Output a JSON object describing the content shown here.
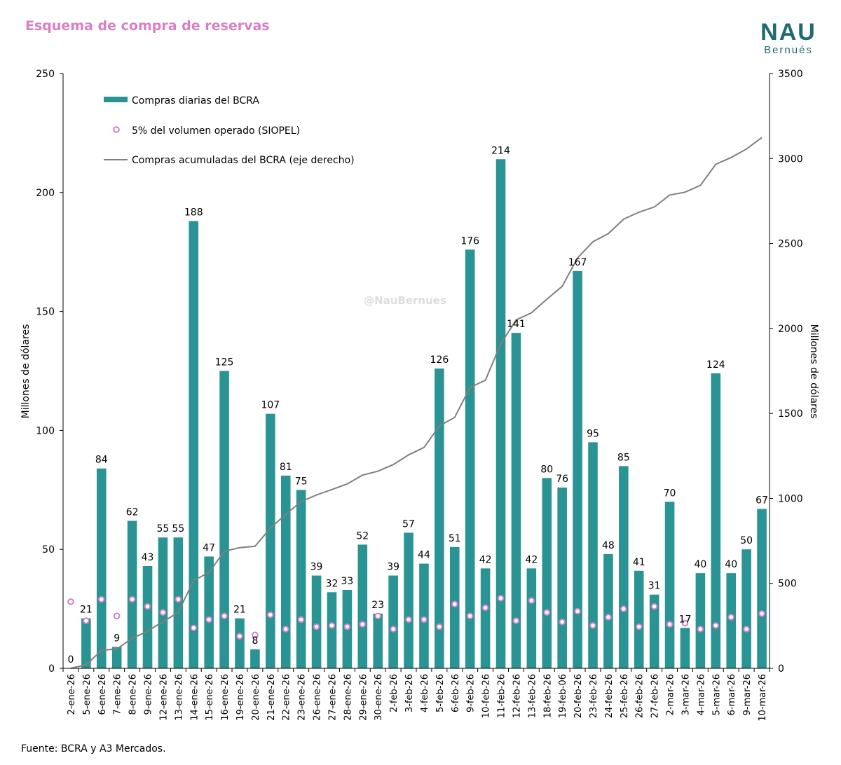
{
  "header": {
    "title": "Esquema de compra de reservas",
    "logo_main": "NAU",
    "logo_sub": "Bernués"
  },
  "watermark": "@NauBernues",
  "source": "Fuente: BCRA y A3 Mercados.",
  "colors": {
    "title": "#d97fc4",
    "bars": "#2a9393",
    "line": "#808080",
    "markers": "#d080c8",
    "logo": "#1f6b6e"
  },
  "chart_data": {
    "type": "bar",
    "categories": [
      "2-ene-26",
      "5-ene-26",
      "6-ene-26",
      "7-ene-26",
      "8-ene-26",
      "9-ene-26",
      "12-ene-26",
      "13-ene-26",
      "14-ene-26",
      "15-ene-26",
      "16-ene-26",
      "19-ene-26",
      "20-ene-26",
      "21-ene-26",
      "22-ene-26",
      "23-ene-26",
      "26-ene-26",
      "27-ene-26",
      "28-ene-26",
      "29-ene-26",
      "30-ene-26",
      "2-feb-26",
      "3-feb-26",
      "4-feb-26",
      "5-feb-26",
      "6-feb-26",
      "9-feb-26",
      "10-feb-26",
      "11-feb-26",
      "12-feb-26",
      "13-feb-26",
      "18-feb-26",
      "19-feb-06",
      "20-feb-26",
      "23-feb-26",
      "24-feb-26",
      "25-feb-26",
      "26-feb-26",
      "27-feb-26",
      "2-mar-26",
      "3-mar-26",
      "4-mar-26",
      "5-mar-26",
      "6-mar-26",
      "9-mar-26",
      "10-mar-26"
    ],
    "series": [
      {
        "name": "Compras diarias del BCRA",
        "type": "bar",
        "axis": "left",
        "values": [
          0,
          21,
          84,
          9,
          62,
          43,
          55,
          55,
          188,
          47,
          125,
          21,
          8,
          107,
          81,
          75,
          39,
          32,
          33,
          52,
          23,
          39,
          57,
          44,
          126,
          51,
          176,
          42,
          214,
          141,
          42,
          80,
          76,
          167,
          95,
          48,
          85,
          41,
          31,
          70,
          17,
          40,
          124,
          40,
          50,
          67
        ],
        "labels": [
          "0",
          "21",
          "84",
          "9",
          "62",
          "43",
          "55",
          "55",
          "188",
          "47",
          "125",
          "21",
          "8",
          "107",
          "81",
          "75",
          "39",
          "32",
          "33",
          "52",
          "23",
          "39",
          "57",
          "44",
          "126",
          "51",
          "176",
          "42",
          "214",
          "141",
          "42",
          "80",
          "76",
          "167",
          "95",
          "48",
          "85",
          "41",
          "31",
          "70",
          "17",
          "40",
          "124",
          "40",
          "50",
          "67"
        ]
      },
      {
        "name": "5% del volumen operado (SIOPEL)",
        "type": "scatter",
        "axis": "left",
        "values": [
          28,
          20,
          29,
          22,
          29,
          26,
          23.5,
          29,
          17,
          20.5,
          22,
          13.5,
          14,
          22.5,
          16.5,
          20.5,
          17.5,
          18,
          17.5,
          18.5,
          22,
          16.5,
          20.5,
          20.5,
          17.5,
          27,
          22,
          25.5,
          29.5,
          20,
          28.5,
          23.5,
          19.5,
          24,
          18,
          21.5,
          25,
          17.5,
          26,
          18.5,
          19,
          16.5,
          18,
          21.5,
          16.5,
          23
        ]
      },
      {
        "name": "Compras acumuladas del BCRA (eje derecho)",
        "type": "line",
        "axis": "right",
        "values": [
          0,
          21,
          105,
          114,
          176,
          219,
          274,
          329,
          517,
          564,
          689,
          710,
          718,
          825,
          906,
          981,
          1020,
          1052,
          1085,
          1137,
          1160,
          1199,
          1256,
          1300,
          1426,
          1477,
          1653,
          1695,
          1909,
          2050,
          2092,
          2172,
          2248,
          2415,
          2510,
          2558,
          2643,
          2684,
          2715,
          2785,
          2802,
          2842,
          2966,
          3006,
          3056,
          3123
        ]
      }
    ],
    "left_axis": {
      "label": "Millones de dólares",
      "range": [
        0,
        250
      ],
      "ticks": [
        "0",
        "50",
        "100",
        "150",
        "200",
        "250"
      ]
    },
    "right_axis": {
      "label": "Millones de dólares",
      "range": [
        0,
        3500
      ],
      "ticks": [
        "0",
        "500",
        "1000",
        "1500",
        "2000",
        "2500",
        "3000",
        "3500"
      ]
    },
    "legend_position": "top-left"
  }
}
